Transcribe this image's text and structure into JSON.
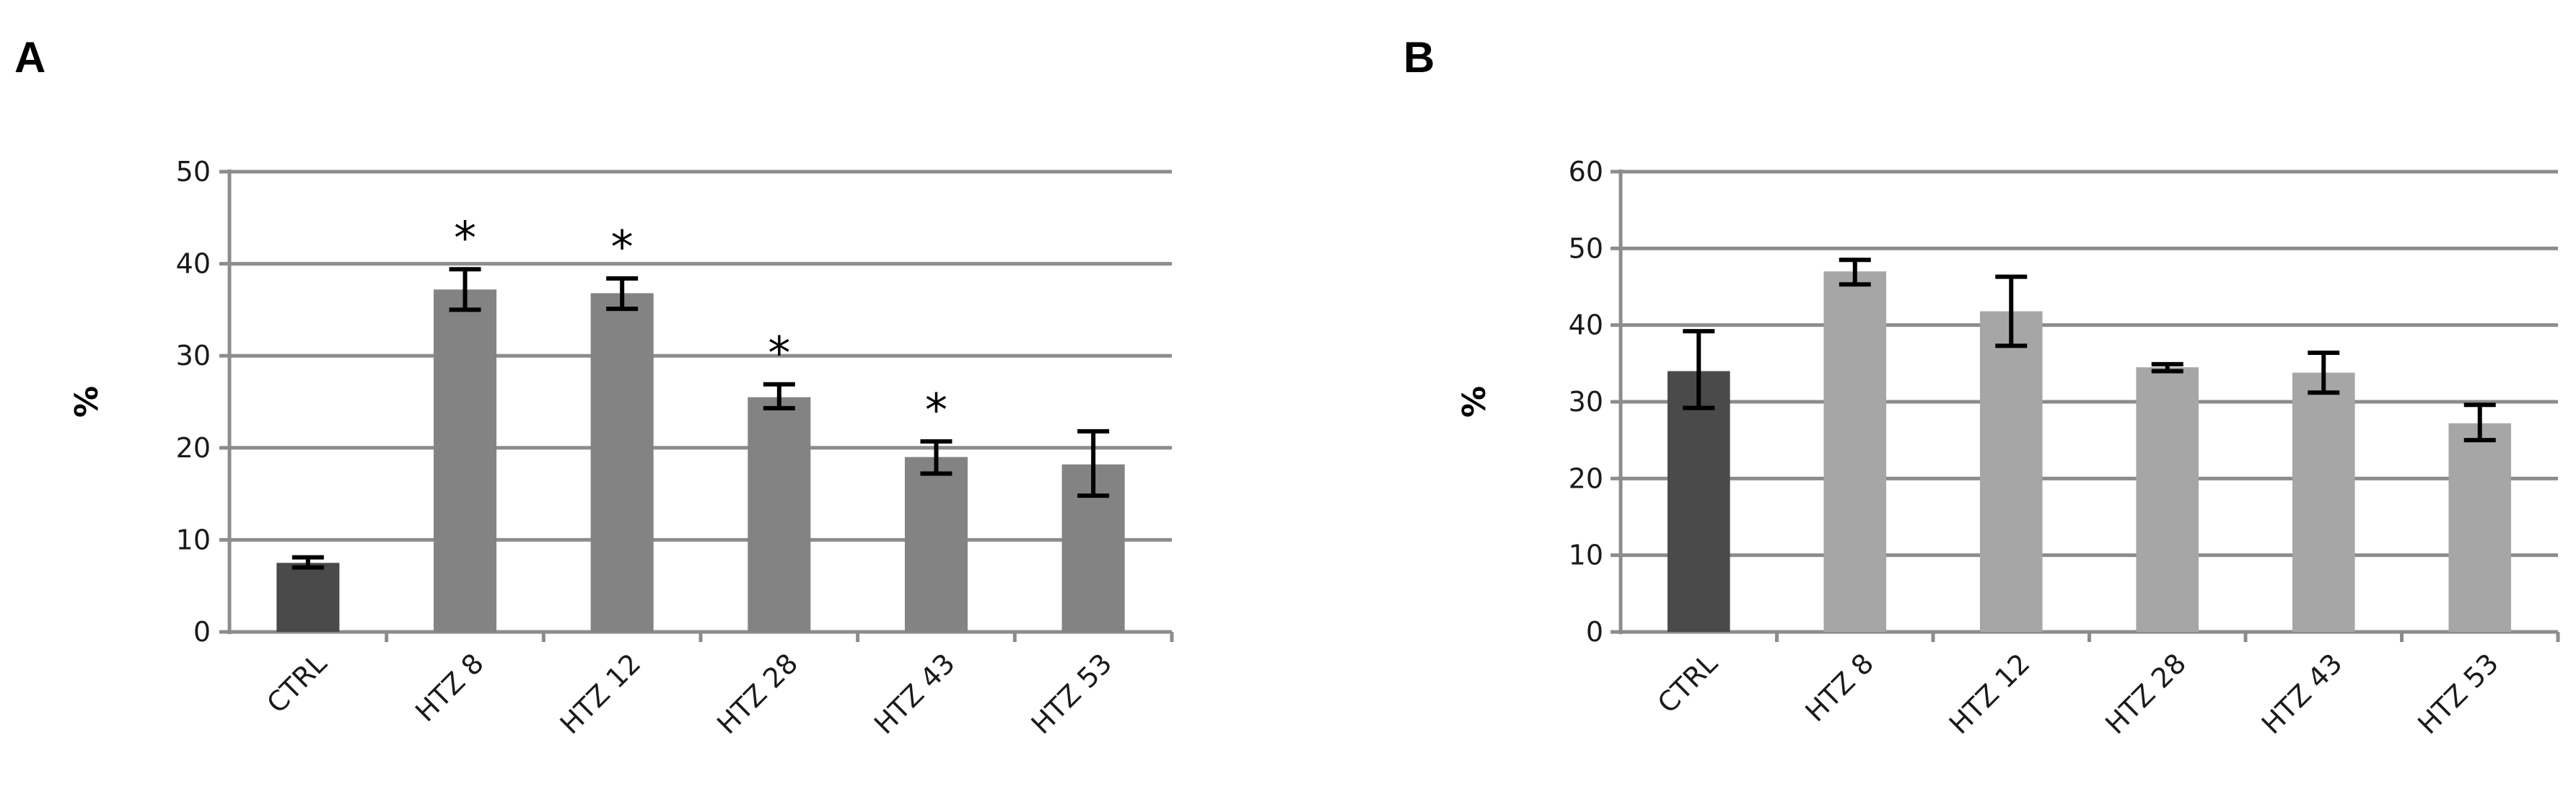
{
  "chart_data": [
    {
      "type": "bar",
      "panel_label": "A",
      "categories": [
        "CTRL",
        "HTZ 8",
        "HTZ 12",
        "HTZ 28",
        "HTZ 43",
        "HTZ 53"
      ],
      "values": [
        7.5,
        37.2,
        36.8,
        25.5,
        19.0,
        18.2
      ],
      "error_low": [
        7.0,
        35.0,
        35.1,
        24.3,
        17.2,
        14.8
      ],
      "error_high": [
        8.1,
        39.4,
        38.4,
        26.9,
        20.7,
        21.8
      ],
      "significance": [
        "",
        "*",
        "*",
        "*",
        "*",
        ""
      ],
      "bar_colors": [
        "#4a4a4a",
        "#838383",
        "#838383",
        "#838383",
        "#838383",
        "#838383"
      ],
      "ylabel": "%",
      "xlabel": "",
      "ylim": [
        0,
        50
      ],
      "yticks": [
        0,
        10,
        20,
        30,
        40,
        50
      ],
      "grid": true
    },
    {
      "type": "bar",
      "panel_label": "B",
      "categories": [
        "CTRL",
        "HTZ 8",
        "HTZ 12",
        "HTZ 28",
        "HTZ 43",
        "HTZ 53"
      ],
      "values": [
        34.0,
        47.0,
        41.8,
        34.5,
        33.8,
        27.2
      ],
      "error_low": [
        29.2,
        45.3,
        37.3,
        34.0,
        31.2,
        25.0
      ],
      "error_high": [
        39.2,
        48.5,
        46.3,
        34.9,
        36.4,
        29.6
      ],
      "significance": [
        "",
        "",
        "",
        "",
        "",
        ""
      ],
      "bar_colors": [
        "#4a4a4a",
        "#a6a6a6",
        "#a6a6a6",
        "#a6a6a6",
        "#a6a6a6",
        "#a6a6a6"
      ],
      "ylabel": "%",
      "xlabel": "",
      "ylim": [
        0,
        60
      ],
      "yticks": [
        0,
        10,
        20,
        30,
        40,
        50,
        60
      ],
      "grid": true
    }
  ]
}
